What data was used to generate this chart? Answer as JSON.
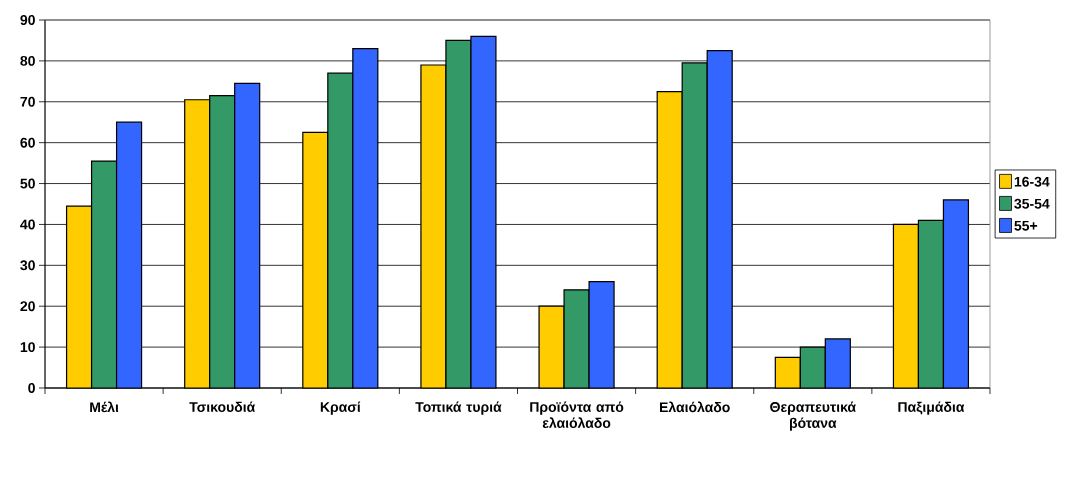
{
  "chart_data": {
    "type": "bar",
    "categories": [
      "Μέλι",
      "Τσικουδιά",
      "Κρασί",
      "Τοπικά τυριά",
      "Προϊόντα από ελαιόλαδο",
      "Ελαιόλαδο",
      "Θεραπευτικά βότανα",
      "Παξιμάδια"
    ],
    "series": [
      {
        "name": "16-34",
        "color": "#ffcc00",
        "values": [
          44.5,
          70.5,
          62.5,
          79,
          20,
          72.5,
          7.5,
          40
        ]
      },
      {
        "name": "35-54",
        "color": "#339966",
        "values": [
          55.5,
          71.5,
          77,
          85,
          24,
          79.5,
          10,
          41
        ]
      },
      {
        "name": "55+",
        "color": "#3366ff",
        "values": [
          65,
          74.5,
          83,
          86,
          26,
          82.5,
          12,
          46
        ]
      }
    ],
    "ylim": [
      0,
      90
    ],
    "yticks": [
      0,
      10,
      20,
      30,
      40,
      50,
      60,
      70,
      80,
      90
    ],
    "grid": "y",
    "legend": "right"
  }
}
